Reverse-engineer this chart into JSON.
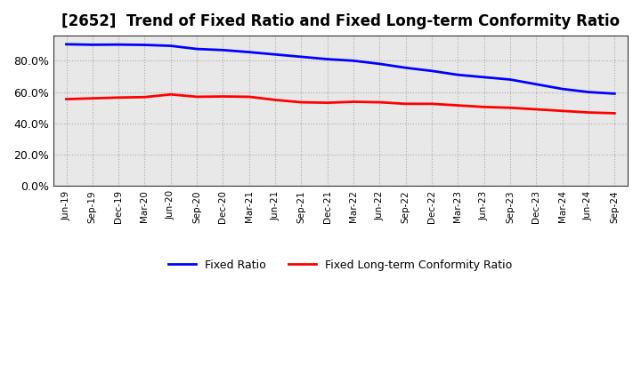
{
  "title": "[2652]  Trend of Fixed Ratio and Fixed Long-term Conformity Ratio",
  "x_labels": [
    "Jun-19",
    "Sep-19",
    "Dec-19",
    "Mar-20",
    "Jun-20",
    "Sep-20",
    "Dec-20",
    "Mar-21",
    "Jun-21",
    "Sep-21",
    "Dec-21",
    "Mar-22",
    "Jun-22",
    "Sep-22",
    "Dec-22",
    "Mar-23",
    "Jun-23",
    "Sep-23",
    "Dec-23",
    "Mar-24",
    "Jun-24",
    "Sep-24"
  ],
  "fixed_ratio": [
    90.5,
    90.2,
    90.3,
    90.1,
    89.5,
    87.5,
    86.8,
    85.5,
    84.0,
    82.5,
    81.0,
    80.0,
    78.0,
    75.5,
    73.5,
    71.0,
    69.5,
    68.0,
    65.0,
    62.0,
    60.0,
    59.0
  ],
  "fixed_lt_ratio": [
    55.5,
    56.0,
    56.5,
    56.8,
    58.5,
    57.0,
    57.2,
    57.0,
    55.0,
    53.5,
    53.2,
    53.8,
    53.5,
    52.5,
    52.5,
    51.5,
    50.5,
    50.0,
    49.0,
    48.0,
    47.0,
    46.5
  ],
  "fixed_ratio_color": "#0000FF",
  "fixed_lt_ratio_color": "#FF0000",
  "ylim": [
    0,
    96
  ],
  "yticks": [
    0,
    20,
    40,
    60,
    80
  ],
  "ytick_labels": [
    "0.0%",
    "20.0%",
    "40.0%",
    "60.0%",
    "80.0%"
  ],
  "background_color": "#FFFFFF",
  "plot_bg_color": "#E8E8E8",
  "grid_color": "#AAAAAA",
  "legend_fixed": "Fixed Ratio",
  "legend_lt": "Fixed Long-term Conformity Ratio",
  "title_fontsize": 12,
  "line_width": 2.0
}
